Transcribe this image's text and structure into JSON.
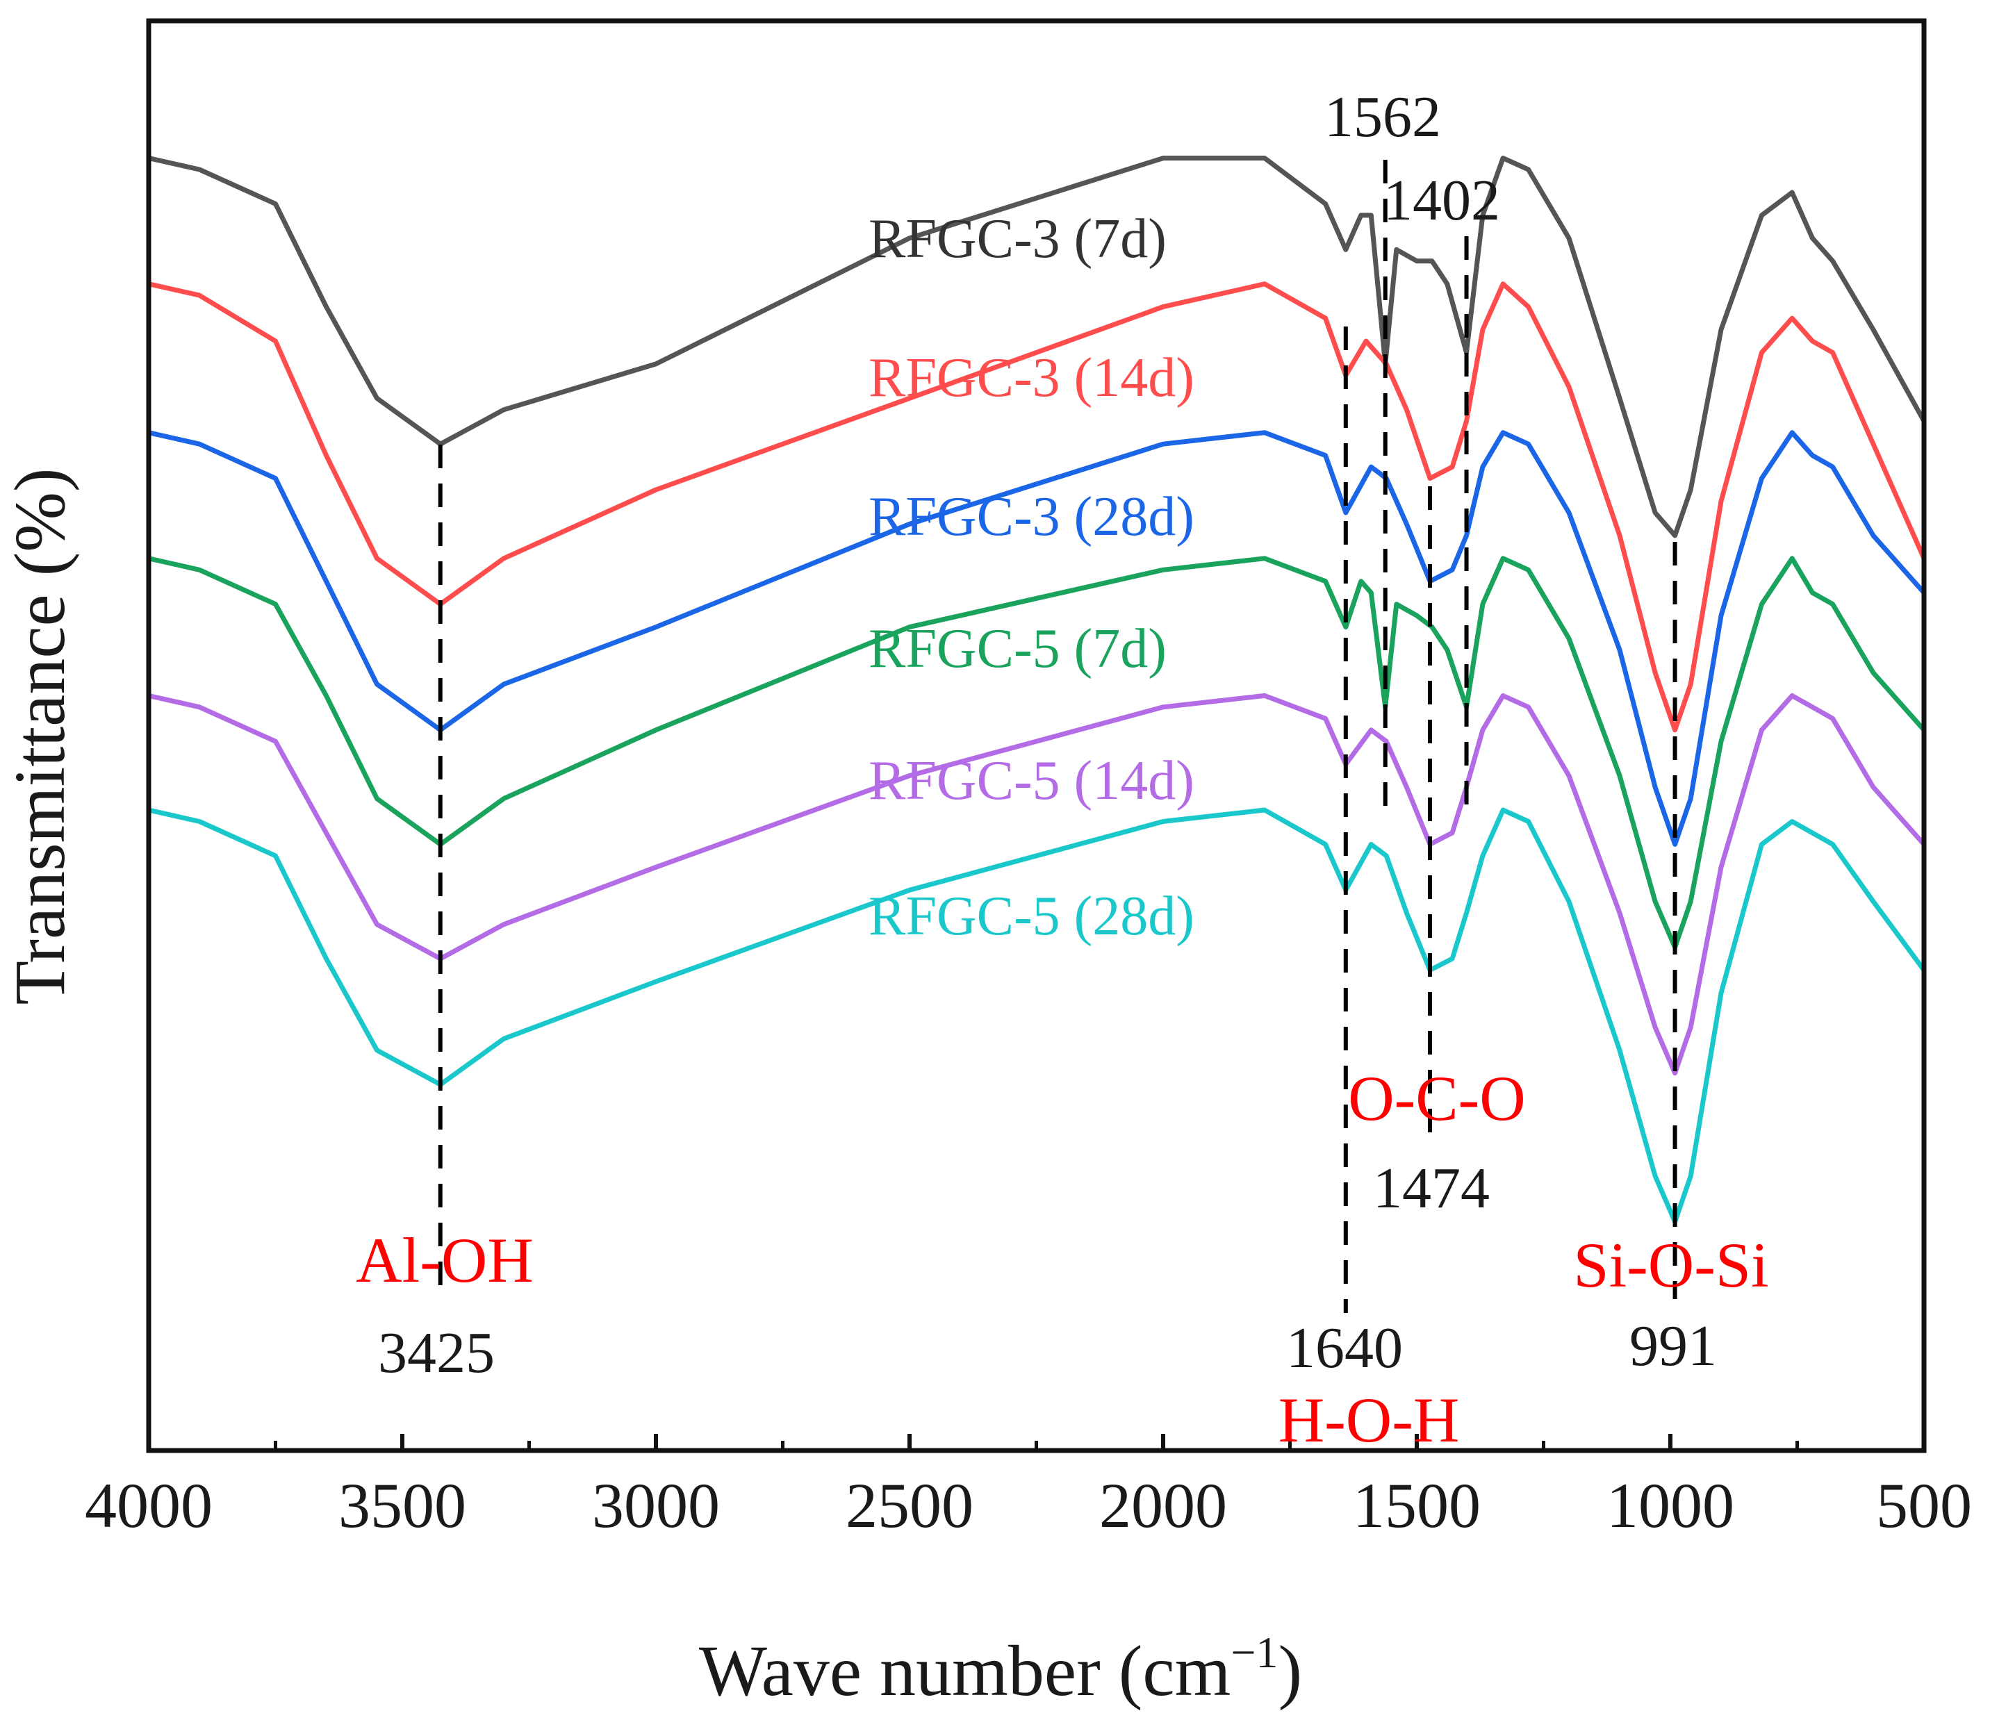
{
  "chart_data": {
    "type": "line",
    "title": "",
    "xlabel": "Wave number (cm",
    "xlabel_sup": "−1",
    "xlabel_close": ")",
    "ylabel": "Transmittance (%)",
    "xlim": [
      4000,
      500
    ],
    "x_reversed": true,
    "yticks_shown": false,
    "xticks": [
      {
        "value": 4000,
        "label": "4000"
      },
      {
        "value": 3500,
        "label": "3500"
      },
      {
        "value": 3000,
        "label": "3000"
      },
      {
        "value": 2500,
        "label": "2500"
      },
      {
        "value": 2000,
        "label": "2000"
      },
      {
        "value": 1500,
        "label": "1500"
      },
      {
        "value": 1000,
        "label": "1000"
      },
      {
        "value": 500,
        "label": "500"
      }
    ],
    "y_units": "arbitrary offset transmittance (stacked)",
    "series": [
      {
        "name": "RFGC-3 (7d)",
        "color": "#555555",
        "offset": 0,
        "points": [
          [
            4000,
            93
          ],
          [
            3900,
            92
          ],
          [
            3750,
            89
          ],
          [
            3650,
            80
          ],
          [
            3550,
            72
          ],
          [
            3425,
            68
          ],
          [
            3300,
            71
          ],
          [
            3000,
            75
          ],
          [
            2500,
            86
          ],
          [
            2000,
            93
          ],
          [
            1800,
            93
          ],
          [
            1680,
            89
          ],
          [
            1640,
            85
          ],
          [
            1610,
            88
          ],
          [
            1590,
            88
          ],
          [
            1562,
            75
          ],
          [
            1540,
            85
          ],
          [
            1500,
            84
          ],
          [
            1470,
            84
          ],
          [
            1440,
            82
          ],
          [
            1402,
            76
          ],
          [
            1370,
            88
          ],
          [
            1330,
            93
          ],
          [
            1280,
            92
          ],
          [
            1200,
            86
          ],
          [
            1100,
            72
          ],
          [
            1030,
            62
          ],
          [
            991,
            60
          ],
          [
            960,
            64
          ],
          [
            900,
            78
          ],
          [
            820,
            88
          ],
          [
            760,
            90
          ],
          [
            720,
            86
          ],
          [
            680,
            84
          ],
          [
            600,
            78
          ],
          [
            500,
            70
          ]
        ]
      },
      {
        "name": "RFGC-3 (14d)",
        "color": "#ff4d4d",
        "offset": 0,
        "points": [
          [
            4000,
            82
          ],
          [
            3900,
            81
          ],
          [
            3750,
            77
          ],
          [
            3650,
            67
          ],
          [
            3550,
            58
          ],
          [
            3425,
            54
          ],
          [
            3300,
            58
          ],
          [
            3000,
            64
          ],
          [
            2500,
            72
          ],
          [
            2000,
            80
          ],
          [
            1800,
            82
          ],
          [
            1680,
            79
          ],
          [
            1640,
            74
          ],
          [
            1600,
            77
          ],
          [
            1560,
            75
          ],
          [
            1520,
            71
          ],
          [
            1474,
            65
          ],
          [
            1430,
            66
          ],
          [
            1402,
            70
          ],
          [
            1370,
            78
          ],
          [
            1330,
            82
          ],
          [
            1280,
            80
          ],
          [
            1200,
            73
          ],
          [
            1100,
            60
          ],
          [
            1030,
            48
          ],
          [
            991,
            43
          ],
          [
            960,
            47
          ],
          [
            900,
            63
          ],
          [
            820,
            76
          ],
          [
            760,
            79
          ],
          [
            720,
            77
          ],
          [
            680,
            76
          ],
          [
            600,
            68
          ],
          [
            500,
            58
          ]
        ]
      },
      {
        "name": "RFGC-3 (28d)",
        "color": "#1a66e6",
        "offset": 0,
        "points": [
          [
            4000,
            69
          ],
          [
            3900,
            68
          ],
          [
            3750,
            65
          ],
          [
            3650,
            56
          ],
          [
            3550,
            47
          ],
          [
            3425,
            43
          ],
          [
            3300,
            47
          ],
          [
            3000,
            52
          ],
          [
            2500,
            61
          ],
          [
            2000,
            68
          ],
          [
            1800,
            69
          ],
          [
            1680,
            67
          ],
          [
            1640,
            62
          ],
          [
            1590,
            66
          ],
          [
            1560,
            65
          ],
          [
            1520,
            61
          ],
          [
            1474,
            56
          ],
          [
            1430,
            57
          ],
          [
            1402,
            60
          ],
          [
            1370,
            66
          ],
          [
            1330,
            69
          ],
          [
            1280,
            68
          ],
          [
            1200,
            62
          ],
          [
            1100,
            50
          ],
          [
            1030,
            38
          ],
          [
            991,
            33
          ],
          [
            960,
            37
          ],
          [
            900,
            53
          ],
          [
            820,
            65
          ],
          [
            760,
            69
          ],
          [
            720,
            67
          ],
          [
            680,
            66
          ],
          [
            600,
            60
          ],
          [
            500,
            55
          ]
        ]
      },
      {
        "name": "RFGC-5 (7d)",
        "color": "#1aa35c",
        "offset": 0,
        "points": [
          [
            4000,
            58
          ],
          [
            3900,
            57
          ],
          [
            3750,
            54
          ],
          [
            3650,
            46
          ],
          [
            3550,
            37
          ],
          [
            3425,
            33
          ],
          [
            3300,
            37
          ],
          [
            3000,
            43
          ],
          [
            2500,
            52
          ],
          [
            2000,
            57
          ],
          [
            1800,
            58
          ],
          [
            1680,
            56
          ],
          [
            1640,
            52
          ],
          [
            1610,
            56
          ],
          [
            1590,
            55
          ],
          [
            1562,
            45
          ],
          [
            1540,
            54
          ],
          [
            1500,
            53
          ],
          [
            1470,
            52
          ],
          [
            1440,
            50
          ],
          [
            1402,
            45
          ],
          [
            1370,
            54
          ],
          [
            1330,
            58
          ],
          [
            1280,
            57
          ],
          [
            1200,
            51
          ],
          [
            1100,
            39
          ],
          [
            1030,
            28
          ],
          [
            991,
            24
          ],
          [
            960,
            28
          ],
          [
            900,
            42
          ],
          [
            820,
            54
          ],
          [
            760,
            58
          ],
          [
            720,
            55
          ],
          [
            680,
            54
          ],
          [
            600,
            48
          ],
          [
            500,
            43
          ]
        ]
      },
      {
        "name": "RFGC-5 (14d)",
        "color": "#b36be6",
        "offset": 0,
        "points": [
          [
            4000,
            46
          ],
          [
            3900,
            45
          ],
          [
            3750,
            42
          ],
          [
            3650,
            34
          ],
          [
            3550,
            26
          ],
          [
            3425,
            23
          ],
          [
            3300,
            26
          ],
          [
            3000,
            31
          ],
          [
            2500,
            39
          ],
          [
            2000,
            45
          ],
          [
            1800,
            46
          ],
          [
            1680,
            44
          ],
          [
            1640,
            40
          ],
          [
            1590,
            43
          ],
          [
            1560,
            42
          ],
          [
            1520,
            38
          ],
          [
            1474,
            33
          ],
          [
            1430,
            34
          ],
          [
            1402,
            38
          ],
          [
            1370,
            43
          ],
          [
            1330,
            46
          ],
          [
            1280,
            45
          ],
          [
            1200,
            39
          ],
          [
            1100,
            27
          ],
          [
            1030,
            17
          ],
          [
            991,
            13
          ],
          [
            960,
            17
          ],
          [
            900,
            31
          ],
          [
            820,
            43
          ],
          [
            760,
            46
          ],
          [
            720,
            45
          ],
          [
            680,
            44
          ],
          [
            600,
            38
          ],
          [
            500,
            33
          ]
        ]
      },
      {
        "name": "RFGC-5 (28d)",
        "color": "#1ac8cc",
        "offset": 0,
        "points": [
          [
            4000,
            36
          ],
          [
            3900,
            35
          ],
          [
            3750,
            32
          ],
          [
            3650,
            23
          ],
          [
            3550,
            15
          ],
          [
            3425,
            12
          ],
          [
            3300,
            16
          ],
          [
            3000,
            21
          ],
          [
            2500,
            29
          ],
          [
            2000,
            35
          ],
          [
            1800,
            36
          ],
          [
            1680,
            33
          ],
          [
            1640,
            29
          ],
          [
            1590,
            33
          ],
          [
            1560,
            32
          ],
          [
            1520,
            27
          ],
          [
            1474,
            22
          ],
          [
            1430,
            23
          ],
          [
            1402,
            27
          ],
          [
            1370,
            32
          ],
          [
            1330,
            36
          ],
          [
            1280,
            35
          ],
          [
            1200,
            28
          ],
          [
            1100,
            15
          ],
          [
            1030,
            4
          ],
          [
            991,
            0
          ],
          [
            960,
            4
          ],
          [
            900,
            20
          ],
          [
            820,
            33
          ],
          [
            760,
            35
          ],
          [
            720,
            34
          ],
          [
            680,
            33
          ],
          [
            600,
            28
          ],
          [
            500,
            22
          ]
        ]
      }
    ],
    "ylim": [
      -20,
      105
    ],
    "peak_markers": [
      {
        "x": 3425,
        "label": "3425",
        "bond": "Al-OH"
      },
      {
        "x": 1640,
        "label": "1640",
        "bond": "H-O-H"
      },
      {
        "x": 1562,
        "label": "1562",
        "bond": ""
      },
      {
        "x": 1474,
        "label": "1474",
        "bond": "O-C-O"
      },
      {
        "x": 1402,
        "label": "1402",
        "bond": ""
      },
      {
        "x": 991,
        "label": "991",
        "bond": "Si-O-Si"
      }
    ]
  }
}
